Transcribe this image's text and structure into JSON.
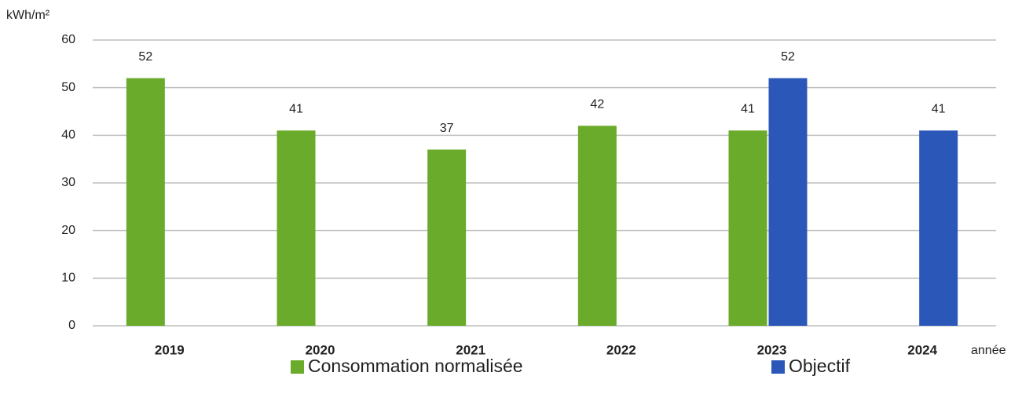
{
  "chart_data": {
    "type": "bar",
    "y_label": "kWh/m²",
    "x_label": "année",
    "categories": [
      "2019",
      "2020",
      "2021",
      "2022",
      "2023",
      "2024"
    ],
    "series": [
      {
        "name": "Consommation normalisée",
        "color": "#6aab2b",
        "values": [
          52,
          41,
          37,
          42,
          41,
          null
        ]
      },
      {
        "name": "Objectif",
        "color": "#2b57b9",
        "values": [
          null,
          null,
          null,
          null,
          52,
          41
        ]
      }
    ],
    "ylim": [
      0,
      60
    ],
    "yticks": [
      0,
      10,
      20,
      30,
      40,
      50,
      60
    ],
    "grid": true,
    "legend": "bottom"
  }
}
